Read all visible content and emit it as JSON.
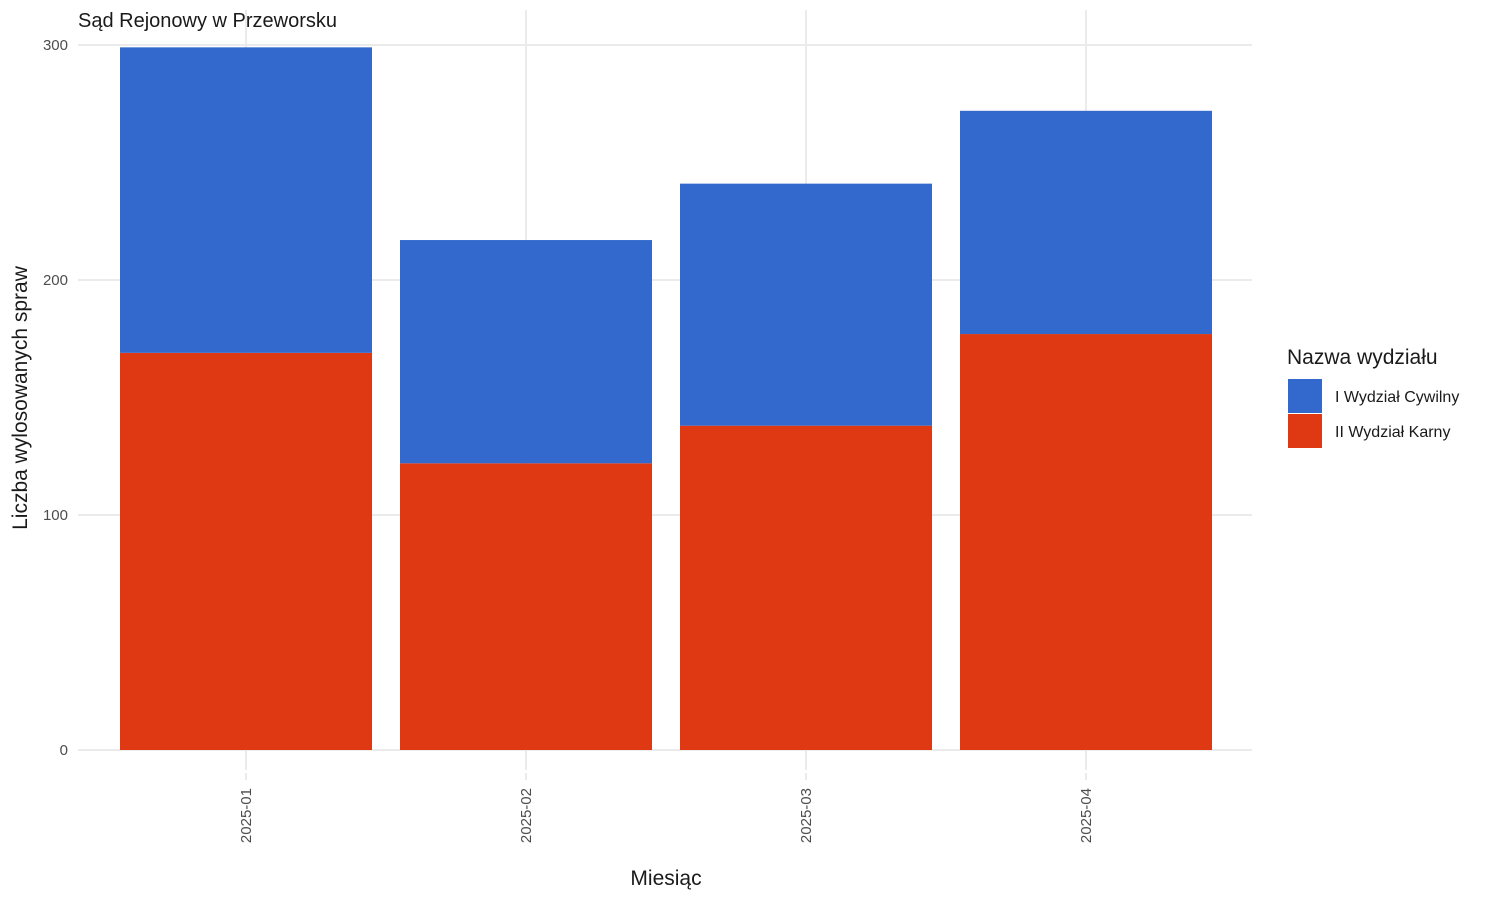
{
  "chart_data": {
    "type": "bar",
    "stacked": true,
    "title": "Sąd Rejonowy w Przeworsku",
    "xlabel": "Miesiąc",
    "ylabel": "Liczba wylosowanych spraw",
    "categories": [
      "2025-01",
      "2025-02",
      "2025-03",
      "2025-04"
    ],
    "series": [
      {
        "name": "II Wydział Karny",
        "color": "#de3912",
        "values": [
          169,
          122,
          138,
          177
        ]
      },
      {
        "name": "I Wydział Cywilny",
        "color": "#3369cc",
        "values": [
          130,
          95,
          103,
          95
        ]
      }
    ],
    "ylim": [
      0,
      300
    ],
    "yticks": [
      0,
      100,
      200,
      300
    ],
    "grid": true,
    "legend": {
      "title": "Nazwa wydziału",
      "placement": "right",
      "entries": [
        {
          "name": "I Wydział Cywilny",
          "color": "#3369cc"
        },
        {
          "name": "II Wydział Karny",
          "color": "#de3912"
        }
      ]
    }
  }
}
